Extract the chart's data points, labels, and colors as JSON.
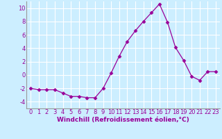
{
  "x": [
    0,
    1,
    2,
    3,
    4,
    5,
    6,
    7,
    8,
    9,
    10,
    11,
    12,
    13,
    14,
    15,
    16,
    17,
    18,
    19,
    20,
    21,
    22,
    23
  ],
  "y": [
    -2.0,
    -2.2,
    -2.2,
    -2.2,
    -2.7,
    -3.2,
    -3.2,
    -3.4,
    -3.4,
    -2.0,
    0.3,
    2.8,
    5.0,
    6.6,
    8.0,
    9.3,
    10.6,
    7.9,
    4.1,
    2.2,
    -0.2,
    -0.8,
    0.5,
    0.5
  ],
  "line_color": "#990099",
  "marker": "D",
  "marker_size": 2.5,
  "bg_color": "#cceeff",
  "grid_color": "#ffffff",
  "xlabel": "Windchill (Refroidissement éolien,°C)",
  "xlabel_color": "#990099",
  "tick_color": "#990099",
  "spine_color": "#999999",
  "ylim": [
    -5,
    11
  ],
  "xlim": [
    -0.5,
    23.5
  ],
  "yticks": [
    -4,
    -2,
    0,
    2,
    4,
    6,
    8,
    10
  ],
  "xticks": [
    0,
    1,
    2,
    3,
    4,
    5,
    6,
    7,
    8,
    9,
    10,
    11,
    12,
    13,
    14,
    15,
    16,
    17,
    18,
    19,
    20,
    21,
    22,
    23
  ],
  "tick_fontsize": 6,
  "xlabel_fontsize": 6.5
}
